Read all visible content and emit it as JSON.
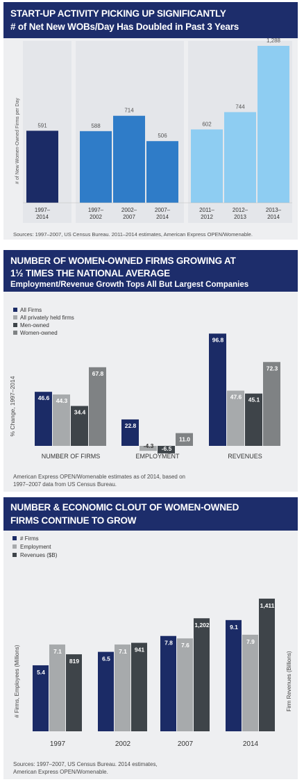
{
  "colors": {
    "navy": "#1d2d6b",
    "blue_dark": "#1b2b66",
    "blue_mid": "#2f7cc8",
    "blue_light": "#8ecdf2",
    "gray_light": "#a7aaac",
    "gray_dark": "#3e4449",
    "gray_mid": "#7f8284"
  },
  "panel1": {
    "title_line1": "START-UP ACTIVITY PICKING UP SIGNIFICANTLY",
    "title_line2": "# of Net New WOBs/Day Has Doubled in Past 3 Years",
    "source": "Sources: 1997–2007, US Census Bureau. 2011–2014 estimates, American Express OPEN/Womenable."
  },
  "panel2": {
    "title_line1": "NUMBER OF WOMEN-OWNED FIRMS GROWING AT",
    "title_line2": "1½ TIMES THE NATIONAL AVERAGE",
    "subtitle": "Employment/Revenue Growth Tops All But Largest Companies",
    "source_line1": "American Express OPEN/Womenable estimates as of 2014, based on",
    "source_line2": "1997–2007 data from US Census Bureau."
  },
  "panel3": {
    "title_line1": "NUMBER & ECONOMIC CLOUT OF WOMEN-OWNED",
    "title_line2": "FIRMS CONTINUE TO GROW",
    "source_line1": "Sources: 1997–2007, US Census Bureau. 2014 estimates,",
    "source_line2": "American Express OPEN/Womenable."
  },
  "chart_data": [
    {
      "type": "bar",
      "title": "START-UP ACTIVITY PICKING UP SIGNIFICANTLY",
      "subtitle": "# of Net New WOBs/Day Has Doubled in Past 3 Years",
      "ylabel": "# of New Women-Owned Firms per Day",
      "categories": [
        "1997–\n2014",
        "1997–\n2002",
        "2002–\n2007",
        "2007–\n2014",
        "2011–\n2012",
        "2012–\n2013",
        "2013–\n2014"
      ],
      "values": [
        591,
        588,
        714,
        506,
        602,
        744,
        1288
      ],
      "value_labels": [
        "591",
        "588",
        "714",
        "506",
        "602",
        "744",
        "1,288"
      ],
      "ylim": [
        0,
        1288
      ]
    },
    {
      "type": "bar",
      "title": "NUMBER OF WOMEN-OWNED FIRMS GROWING AT 1½ TIMES THE NATIONAL AVERAGE",
      "subtitle": "Employment/Revenue Growth Tops All But Largest Companies",
      "ylabel": "% Change, 1997–2014",
      "categories": [
        "NUMBER OF FIRMS",
        "EMPLOYMENT",
        "REVENUES"
      ],
      "legend_position": "top-left",
      "series": [
        {
          "name": "All Firms",
          "values": [
            46.6,
            22.8,
            96.8
          ]
        },
        {
          "name": "All privately held firms",
          "values": [
            44.3,
            -4.3,
            47.6
          ]
        },
        {
          "name": "Men-owned",
          "values": [
            34.4,
            -6.5,
            45.1
          ]
        },
        {
          "name": "Women-owned",
          "values": [
            67.8,
            11.0,
            72.3
          ]
        }
      ],
      "value_labels": [
        [
          "46.6",
          "22.8",
          "96.8"
        ],
        [
          "44.3",
          "-4.3",
          "47.6"
        ],
        [
          "34.4",
          "-6.5",
          "45.1"
        ],
        [
          "67.8",
          "11.0",
          "72.3"
        ]
      ]
    },
    {
      "type": "bar",
      "title": "NUMBER & ECONOMIC CLOUT OF WOMEN-OWNED FIRMS CONTINUE TO GROW",
      "ylabel_left": "# Firms, Employees (Millions)",
      "ylabel_right": "Firm Revenues (Billions)",
      "categories": [
        "1997",
        "2002",
        "2007",
        "2014"
      ],
      "legend_position": "top-left",
      "series": [
        {
          "name": "# Firms",
          "axis": "left",
          "values": [
            5.4,
            6.5,
            7.8,
            9.1
          ]
        },
        {
          "name": "Employment",
          "axis": "left",
          "values": [
            7.1,
            7.1,
            7.6,
            7.9
          ]
        },
        {
          "name": "Revenues ($B)",
          "axis": "right",
          "values": [
            819,
            941,
            1202,
            1411
          ]
        }
      ],
      "value_labels": [
        [
          "5.4",
          "6.5",
          "7.8",
          "9.1"
        ],
        [
          "7.1",
          "7.1",
          "7.6",
          "7.9"
        ],
        [
          "819",
          "941",
          "1,202",
          "1,411"
        ]
      ]
    }
  ]
}
